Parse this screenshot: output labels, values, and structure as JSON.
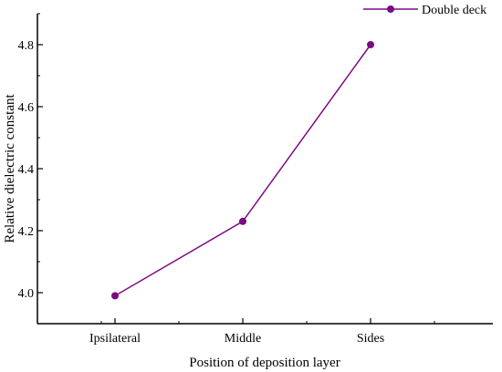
{
  "chart_data": {
    "type": "line",
    "title": "",
    "xlabel": "Position of deposition layer",
    "ylabel": "Relative dielectric constant",
    "categories": [
      "Ipsilateral",
      "Middle",
      "Sides"
    ],
    "series": [
      {
        "name": "Double deck",
        "values": [
          3.99,
          4.23,
          4.8
        ],
        "color": "#7b0a82"
      }
    ],
    "ylim": [
      3.9,
      4.9
    ],
    "yticks": [
      "4.0",
      "4.2",
      "4.4",
      "4.6",
      "4.8"
    ],
    "grid": false,
    "legend_position": "top-right"
  }
}
